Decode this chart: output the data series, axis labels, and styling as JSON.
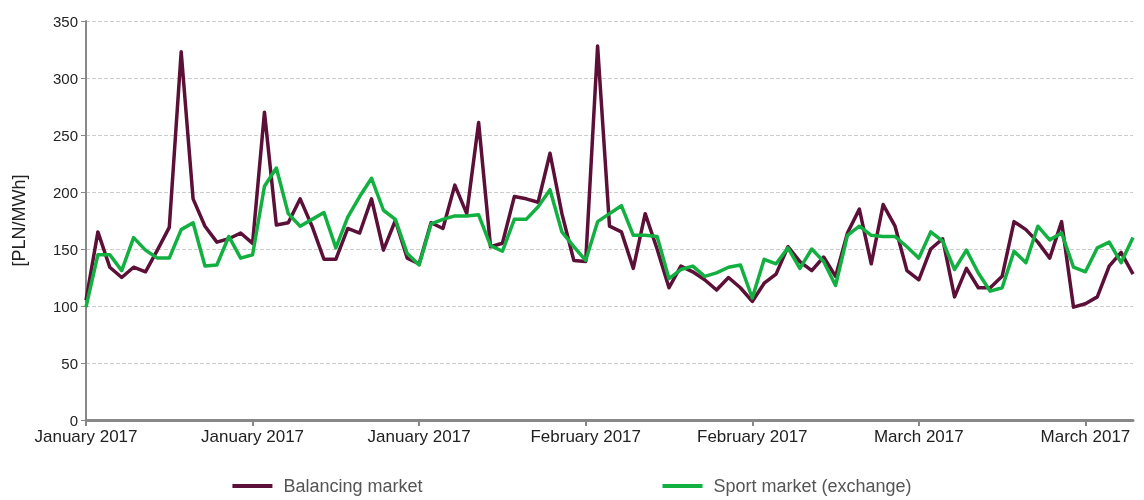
{
  "chart_data": {
    "type": "line",
    "ylabel": "[PLN/MWh]",
    "categories": [
      "January 2017",
      null,
      null,
      null,
      null,
      null,
      null,
      null,
      null,
      null,
      null,
      null,
      null,
      null,
      "January 2017",
      null,
      null,
      null,
      null,
      null,
      null,
      null,
      null,
      null,
      null,
      null,
      null,
      null,
      "January 2017",
      null,
      null,
      null,
      null,
      null,
      null,
      null,
      null,
      null,
      null,
      null,
      null,
      null,
      "February 2017",
      null,
      null,
      null,
      null,
      null,
      null,
      null,
      null,
      null,
      null,
      null,
      null,
      null,
      "February 2017",
      null,
      null,
      null,
      null,
      null,
      null,
      null,
      null,
      null,
      null,
      null,
      null,
      null,
      "March 2017",
      null,
      null,
      null,
      null,
      null,
      null,
      null,
      null,
      null,
      null,
      null,
      null,
      null,
      "March 2017",
      null,
      null,
      null,
      null
    ],
    "series": [
      {
        "name": "Balancing market",
        "color": "#5c1038",
        "values": [
          105,
          165,
          134,
          125,
          134,
          130,
          149,
          169,
          323,
          194,
          170,
          156,
          159,
          164,
          155,
          270,
          171,
          173,
          194,
          170,
          141,
          141,
          168,
          164,
          194,
          149,
          175,
          142,
          137,
          173,
          168,
          206,
          181,
          261,
          152,
          155,
          196,
          194,
          191,
          234,
          181,
          140,
          139,
          328,
          170,
          165,
          133,
          181,
          150,
          116,
          135,
          130,
          123,
          114,
          125,
          116,
          104,
          120,
          128,
          152,
          139,
          131,
          143,
          126,
          164,
          185,
          137,
          189,
          170,
          131,
          123,
          150,
          159,
          108,
          133,
          116,
          116,
          126,
          174,
          167,
          156,
          142,
          174,
          99,
          102,
          108,
          135,
          147,
          128
        ]
      },
      {
        "name": "Sport market (exchange)",
        "color": "#12b040",
        "values": [
          99,
          145,
          145,
          131,
          160,
          149,
          142,
          142,
          167,
          173,
          135,
          136,
          161,
          142,
          145,
          205,
          221,
          181,
          170,
          176,
          182,
          151,
          178,
          196,
          212,
          184,
          176,
          146,
          136,
          172,
          176,
          179,
          179,
          180,
          153,
          148,
          176,
          176,
          187,
          202,
          165,
          152,
          140,
          174,
          181,
          188,
          162,
          162,
          161,
          124,
          132,
          135,
          126,
          129,
          134,
          136,
          107,
          141,
          137,
          151,
          133,
          150,
          139,
          118,
          162,
          170,
          162,
          161,
          161,
          152,
          142,
          165,
          157,
          132,
          149,
          129,
          113,
          116,
          148,
          138,
          170,
          158,
          164,
          134,
          130,
          151,
          156,
          138,
          160
        ]
      }
    ],
    "ylim": [
      0,
      350
    ],
    "yticks": [
      0,
      50,
      100,
      150,
      200,
      250,
      300,
      350
    ],
    "grid": "y",
    "legend": "bottom",
    "marker": "none",
    "line_style": "solid"
  }
}
